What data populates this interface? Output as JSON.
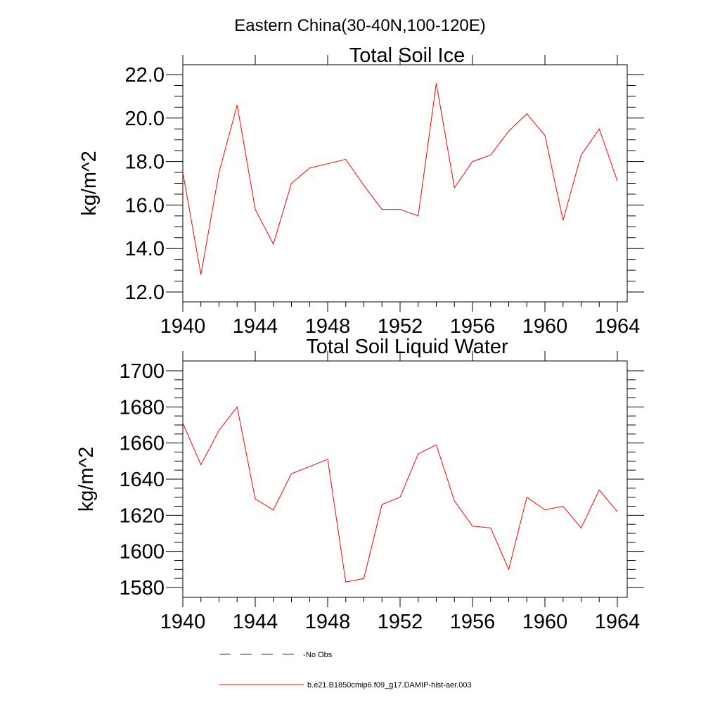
{
  "page_title": "Eastern China(30-40N,100-120E)",
  "chart_data": [
    {
      "type": "line",
      "title": "Total Soil Ice",
      "ylabel": "kg/m^2",
      "xlabel": "",
      "xlim": [
        1940,
        1964
      ],
      "ylim": [
        12.0,
        22.0
      ],
      "x_ticks": [
        1940,
        1944,
        1948,
        1952,
        1956,
        1960,
        1964
      ],
      "x_tick_labels": [
        "1940",
        "1944",
        "1948",
        "1952",
        "1956",
        "1960",
        "1964"
      ],
      "y_ticks": [
        12.0,
        14.0,
        16.0,
        18.0,
        20.0,
        22.0
      ],
      "y_tick_labels": [
        "12.0",
        "14.0",
        "16.0",
        "18.0",
        "20.0",
        "22.0"
      ],
      "grid": false,
      "x": [
        1940,
        1941,
        1942,
        1943,
        1944,
        1945,
        1946,
        1947,
        1948,
        1949,
        1950,
        1951,
        1952,
        1953,
        1954,
        1955,
        1956,
        1957,
        1958,
        1959,
        1960,
        1961,
        1962,
        1963,
        1964
      ],
      "series": [
        {
          "name": "b.e21.B1850cmip6.f09_g17.DAMIP-hist-aer.003",
          "color": "#ff0000",
          "values": [
            17.5,
            12.8,
            17.5,
            20.6,
            15.8,
            14.2,
            17.0,
            17.7,
            17.9,
            18.1,
            16.9,
            15.8,
            15.8,
            15.5,
            21.6,
            16.8,
            18.0,
            18.3,
            19.4,
            20.2,
            19.2,
            15.3,
            18.3,
            19.5,
            17.1
          ]
        }
      ]
    },
    {
      "type": "line",
      "title": "Total Soil Liquid Water",
      "ylabel": "kg/m^2",
      "xlabel": "",
      "xlim": [
        1940,
        1964
      ],
      "ylim": [
        1580,
        1700
      ],
      "x_ticks": [
        1940,
        1944,
        1948,
        1952,
        1956,
        1960,
        1964
      ],
      "x_tick_labels": [
        "1940",
        "1944",
        "1948",
        "1952",
        "1956",
        "1960",
        "1964"
      ],
      "y_ticks": [
        1580,
        1600,
        1620,
        1640,
        1660,
        1680,
        1700
      ],
      "y_tick_labels": [
        "1580",
        "1600",
        "1620",
        "1640",
        "1660",
        "1680",
        "1700"
      ],
      "grid": false,
      "x": [
        1940,
        1941,
        1942,
        1943,
        1944,
        1945,
        1946,
        1947,
        1948,
        1949,
        1950,
        1951,
        1952,
        1953,
        1954,
        1955,
        1956,
        1957,
        1958,
        1959,
        1960,
        1961,
        1962,
        1963,
        1964
      ],
      "series": [
        {
          "name": "b.e21.B1850cmip6.f09_g17.DAMIP-hist-aer.003",
          "color": "#ff0000",
          "values": [
            1671,
            1648,
            1667,
            1680,
            1629,
            1623,
            1643,
            1647,
            1651,
            1583,
            1585,
            1626,
            1630,
            1654,
            1659,
            1628,
            1614,
            1613,
            1590,
            1630,
            1623,
            1625,
            1613,
            1634,
            1622
          ]
        }
      ]
    }
  ],
  "legend": {
    "placement": "bottom",
    "entries": [
      {
        "label": "No Obs",
        "color": "#2b2b7a",
        "style": "dashed"
      },
      {
        "label": "b.e21.B1850cmip6.f09_g17.DAMIP-hist-aer.003",
        "color": "#ff0000",
        "style": "solid"
      }
    ]
  }
}
